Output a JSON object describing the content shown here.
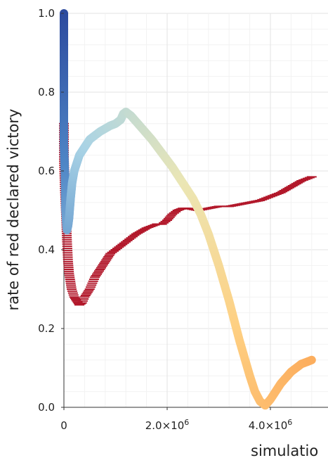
{
  "chart_data": {
    "type": "scatter",
    "title": "",
    "xlabel": "simulatio",
    "ylabel": "rate of red declared victory",
    "xlim": [
      0,
      4850000
    ],
    "ylim": [
      0,
      1.0
    ],
    "grid": true,
    "xticks": [
      {
        "value": 0,
        "label": "0"
      },
      {
        "value": 2000000,
        "label": "2.0×10",
        "exp": "6"
      },
      {
        "value": 4000000,
        "label": "4.0×10",
        "exp": "6"
      }
    ],
    "yticks": [
      {
        "value": 0.0,
        "label": "0.0"
      },
      {
        "value": 0.2,
        "label": "0.2"
      },
      {
        "value": 0.4,
        "label": "0.4"
      },
      {
        "value": 0.6,
        "label": "0.6"
      },
      {
        "value": 0.8,
        "label": "0.8"
      },
      {
        "value": 1.0,
        "label": "1.0"
      }
    ],
    "series": [
      {
        "marker": "circle",
        "colormap": [
          "#2c4a9e",
          "#4f86c6",
          "#a9d3e5",
          "#ebe6b4",
          "#fed083",
          "#fcae5e"
        ],
        "x": [
          0,
          0,
          20000,
          25000,
          30000,
          40000,
          50000,
          60000,
          80000,
          100000,
          130000,
          160000,
          200000,
          300000,
          400000,
          500000,
          700000,
          900000,
          1000000,
          1100000,
          1150000,
          1200000,
          1300000,
          1500000,
          1700000,
          1900000,
          2100000,
          2300000,
          2500000,
          2650000,
          2800000,
          3000000,
          3200000,
          3400000,
          3600000,
          3700000,
          3800000,
          3900000,
          4000000,
          4200000,
          4400000,
          4600000,
          4800000
        ],
        "y": [
          1.0,
          0.67,
          0.59,
          0.54,
          0.5,
          0.48,
          0.46,
          0.45,
          0.46,
          0.48,
          0.53,
          0.57,
          0.6,
          0.64,
          0.66,
          0.68,
          0.7,
          0.715,
          0.72,
          0.73,
          0.745,
          0.75,
          0.74,
          0.71,
          0.68,
          0.645,
          0.61,
          0.57,
          0.53,
          0.49,
          0.44,
          0.36,
          0.27,
          0.17,
          0.08,
          0.04,
          0.015,
          0.005,
          0.02,
          0.06,
          0.09,
          0.11,
          0.12
        ]
      },
      {
        "marker": "dash",
        "color": "#b2182b",
        "x": [
          0,
          0,
          20000,
          40000,
          60000,
          80000,
          100000,
          150000,
          200000,
          250000,
          300000,
          350000,
          400000,
          500000,
          600000,
          700000,
          800000,
          900000,
          1000000,
          1100000,
          1200000,
          1400000,
          1600000,
          1800000,
          1900000,
          2000000,
          2100000,
          2200000,
          2300000,
          2400000,
          2600000,
          2800000,
          3000000,
          3200000,
          3400000,
          3600000,
          3800000,
          4000000,
          4200000,
          4400000,
          4600000,
          4800000
        ],
        "y": [
          0.72,
          0.63,
          0.55,
          0.49,
          0.42,
          0.37,
          0.34,
          0.3,
          0.28,
          0.27,
          0.26,
          0.265,
          0.28,
          0.3,
          0.33,
          0.35,
          0.37,
          0.39,
          0.4,
          0.41,
          0.42,
          0.44,
          0.455,
          0.465,
          0.465,
          0.475,
          0.49,
          0.5,
          0.505,
          0.505,
          0.5,
          0.505,
          0.51,
          0.51,
          0.515,
          0.52,
          0.525,
          0.535,
          0.545,
          0.56,
          0.575,
          0.585
        ]
      }
    ]
  }
}
